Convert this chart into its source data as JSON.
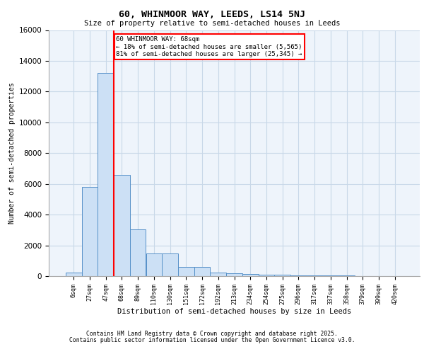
{
  "title_line1": "60, WHINMOOR WAY, LEEDS, LS14 5NJ",
  "title_line2": "Size of property relative to semi-detached houses in Leeds",
  "xlabel": "Distribution of semi-detached houses by size in Leeds",
  "ylabel": "Number of semi-detached properties",
  "categories": [
    "6sqm",
    "27sqm",
    "47sqm",
    "68sqm",
    "89sqm",
    "110sqm",
    "130sqm",
    "151sqm",
    "172sqm",
    "192sqm",
    "213sqm",
    "234sqm",
    "254sqm",
    "275sqm",
    "296sqm",
    "317sqm",
    "337sqm",
    "358sqm",
    "379sqm",
    "399sqm",
    "420sqm"
  ],
  "bar_heights": [
    250,
    5800,
    13200,
    6600,
    3050,
    1480,
    1480,
    620,
    620,
    250,
    200,
    150,
    100,
    80,
    60,
    50,
    40,
    30,
    20,
    15,
    10
  ],
  "bar_color": "#cce0f5",
  "bar_edge_color": "#5590c8",
  "red_line_bin_index": 3,
  "annotation_text": "60 WHINMOOR WAY: 68sqm\n← 18% of semi-detached houses are smaller (5,565)\n81% of semi-detached houses are larger (25,345) →",
  "annotation_box_color": "white",
  "annotation_box_edge_color": "red",
  "red_line_color": "red",
  "ylim": [
    0,
    16000
  ],
  "yticks": [
    0,
    2000,
    4000,
    6000,
    8000,
    10000,
    12000,
    14000,
    16000
  ],
  "grid_color": "#c8d8e8",
  "background_color": "#eef4fb",
  "footer_line1": "Contains HM Land Registry data © Crown copyright and database right 2025.",
  "footer_line2": "Contains public sector information licensed under the Open Government Licence v3.0."
}
